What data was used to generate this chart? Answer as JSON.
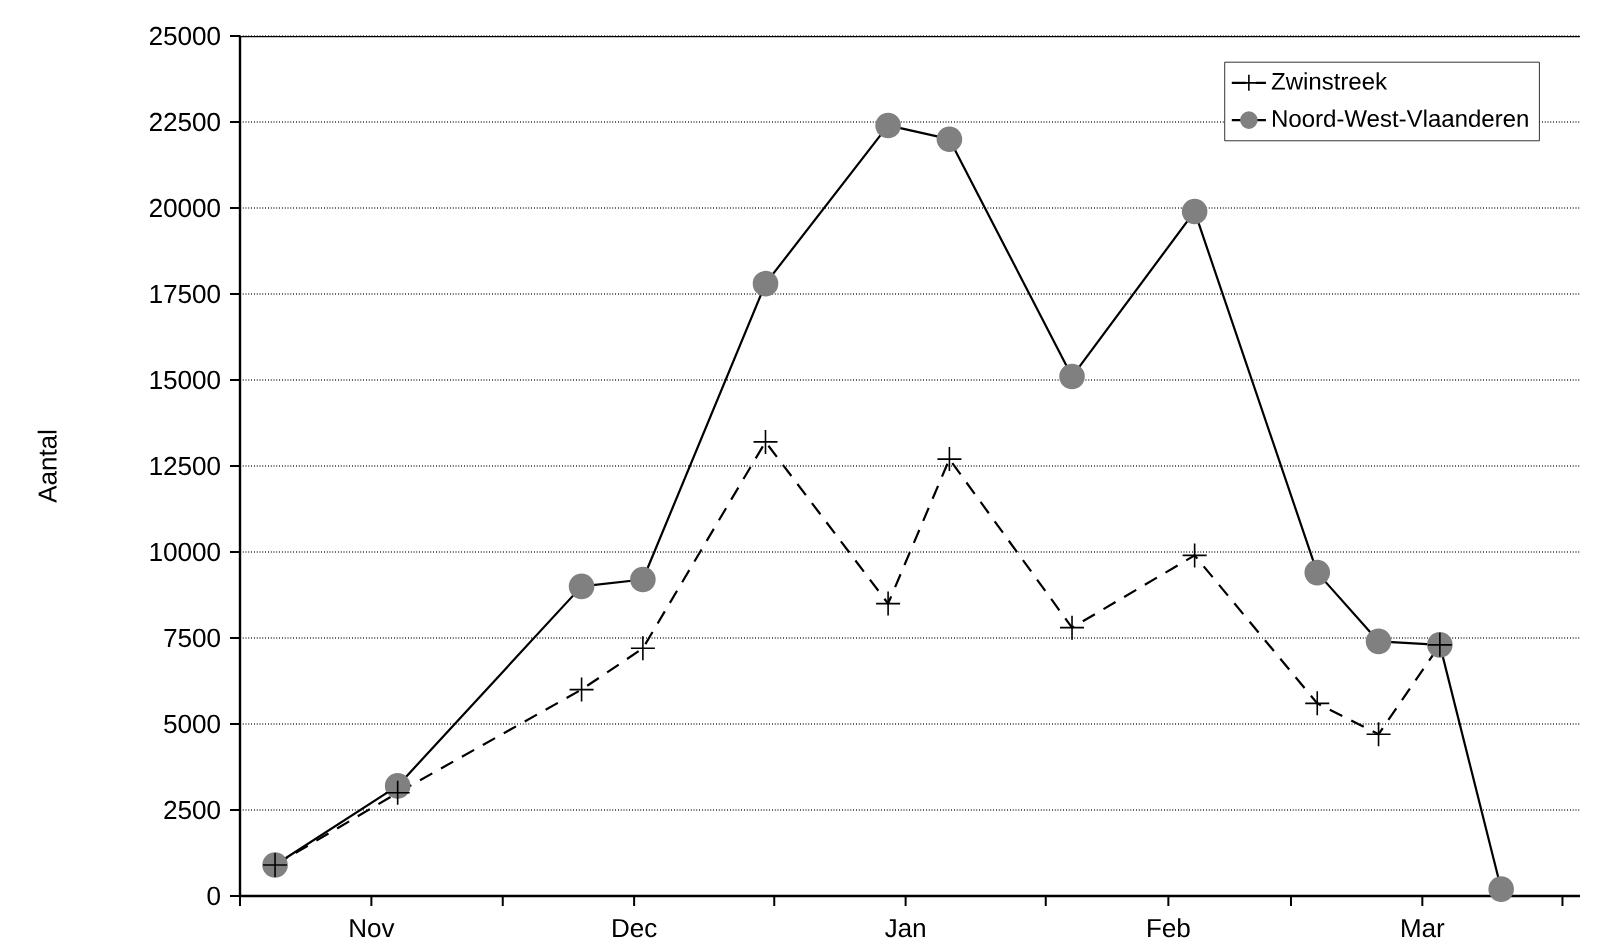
{
  "chart_data": {
    "type": "line",
    "ylabel": "Aantal",
    "x": [
      "2000-11-05",
      "2000-11-19",
      "2000-12-10",
      "2000-12-17",
      "2000-12-31",
      "2001-01-14",
      "2001-01-21",
      "2001-02-04",
      "2001-02-18",
      "2001-03-04",
      "2001-03-11",
      "2001-03-18",
      "2001-03-25"
    ],
    "series": [
      {
        "name": "Zwinstreek",
        "color": "#000000",
        "marker": "cross",
        "line_style": "dashed",
        "values": [
          900,
          3000,
          6000,
          7200,
          13200,
          8500,
          12700,
          7800,
          9900,
          5600,
          4700,
          7300,
          null
        ]
      },
      {
        "name": "Noord-West-Vlaanderen",
        "color": "#808080",
        "marker": "circle",
        "line_style": "solid",
        "values": [
          900,
          3200,
          9000,
          9200,
          17800,
          22400,
          22000,
          15100,
          19900,
          9400,
          7400,
          7300,
          200
        ]
      }
    ],
    "xlim": [
      "2000-11-01",
      "2001-04-03"
    ],
    "xticks": [
      {
        "value": "2000-11-01",
        "label": null
      },
      {
        "value": "2000-11-16",
        "label": "Nov"
      },
      {
        "value": "2000-12-01",
        "label": null
      },
      {
        "value": "2000-12-16",
        "label": "Dec"
      },
      {
        "value": "2001-01-01",
        "label": null
      },
      {
        "value": "2001-01-16",
        "label": "Jan"
      },
      {
        "value": "2001-02-01",
        "label": null
      },
      {
        "value": "2001-02-15",
        "label": "Feb"
      },
      {
        "value": "2001-03-01",
        "label": null
      },
      {
        "value": "2001-03-16",
        "label": "Mar"
      },
      {
        "value": "2001-04-01",
        "label": null
      }
    ],
    "ylim": [
      0,
      25000
    ],
    "yticks": [
      0,
      2500,
      5000,
      7500,
      10000,
      12500,
      15000,
      17500,
      20000,
      22500,
      25000
    ],
    "grid": "y",
    "legend": "top right"
  }
}
